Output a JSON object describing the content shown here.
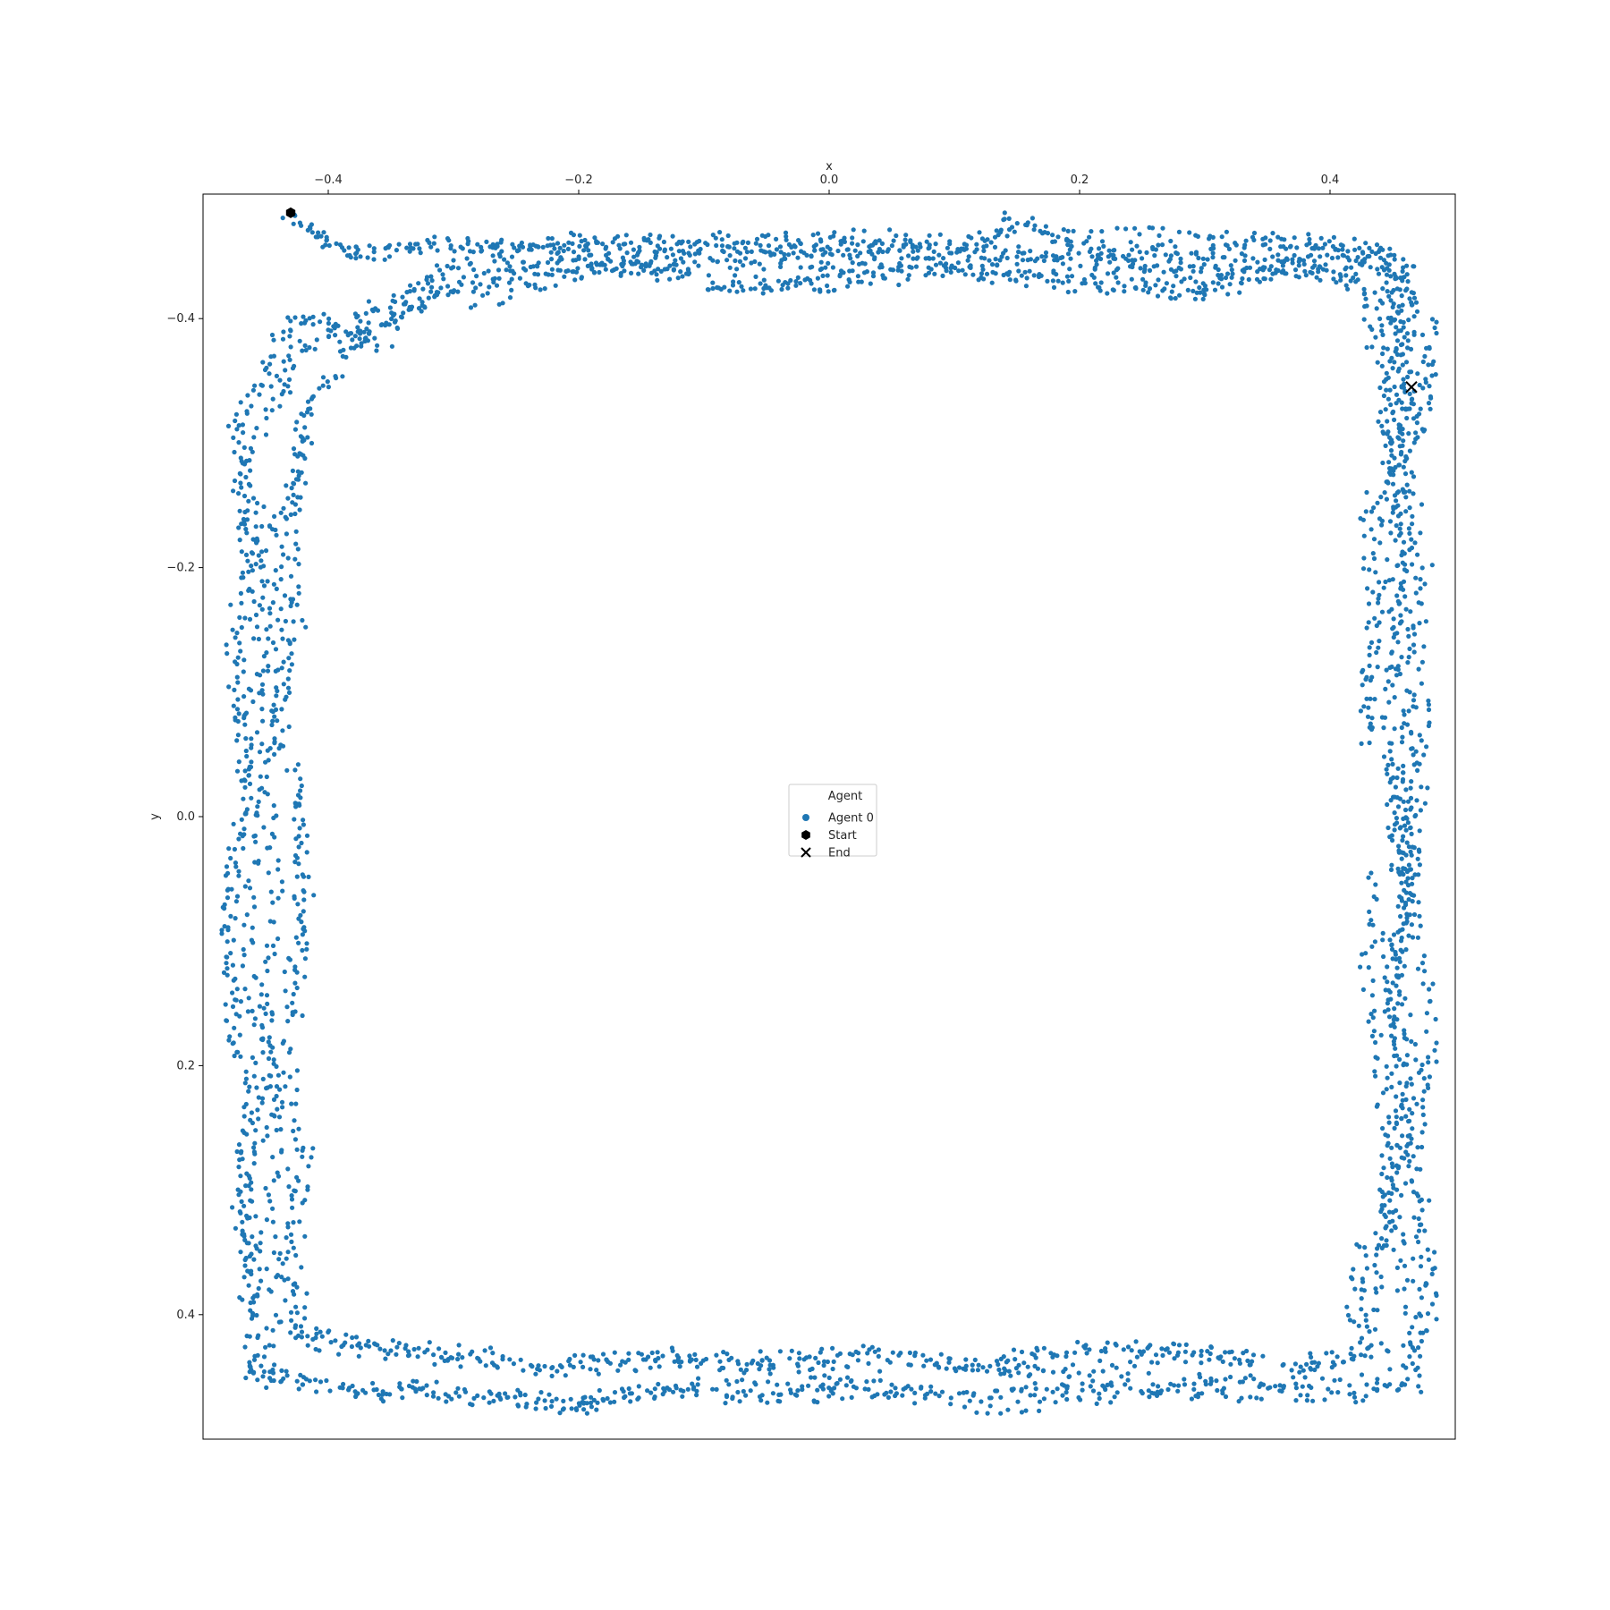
{
  "chart_data": {
    "type": "scatter",
    "xlabel": "x",
    "ylabel": "y",
    "xlim": [
      -0.5,
      0.5
    ],
    "ylim": [
      -0.5,
      0.5
    ],
    "y_inverted": true,
    "x_axis_position": "top",
    "x_ticks": [
      "-0.4",
      "-0.2",
      "0.0",
      "0.2",
      "0.4"
    ],
    "x_tick_values": [
      -0.4,
      -0.2,
      0.0,
      0.2,
      0.4
    ],
    "y_ticks": [
      "-0.4",
      "-0.2",
      "0.0",
      "0.2",
      "0.4"
    ],
    "y_tick_values": [
      -0.4,
      -0.2,
      0.0,
      0.2,
      0.4
    ],
    "grid": false,
    "legend": {
      "title": "Agent",
      "placement": "center",
      "entries": [
        {
          "label": "Agent 0",
          "marker": "circle",
          "color": "#1f77b4"
        },
        {
          "label": "Start",
          "marker": "hexagon",
          "color": "#000000"
        },
        {
          "label": "End",
          "marker": "x",
          "color": "#000000"
        }
      ]
    },
    "series": [
      {
        "name": "Agent 0",
        "color": "#1f77b4",
        "description_of_path": "dense trajectory hugging the walls of a square arena",
        "path": [
          [
            -0.43,
            -0.48
          ],
          [
            -0.38,
            -0.45
          ],
          [
            -0.3,
            -0.46
          ],
          [
            -0.2,
            -0.46
          ],
          [
            -0.1,
            -0.46
          ],
          [
            0.0,
            -0.46
          ],
          [
            0.1,
            -0.46
          ],
          [
            0.15,
            -0.48
          ],
          [
            0.2,
            -0.46
          ],
          [
            0.3,
            -0.46
          ],
          [
            0.4,
            -0.46
          ],
          [
            0.45,
            -0.45
          ],
          [
            0.47,
            -0.4
          ],
          [
            0.46,
            -0.3
          ],
          [
            0.47,
            -0.2
          ],
          [
            0.46,
            -0.1
          ],
          [
            0.46,
            0.0
          ],
          [
            0.46,
            0.1
          ],
          [
            0.47,
            0.2
          ],
          [
            0.46,
            0.3
          ],
          [
            0.47,
            0.4
          ],
          [
            0.46,
            0.45
          ],
          [
            0.4,
            0.46
          ],
          [
            0.3,
            0.46
          ],
          [
            0.2,
            0.46
          ],
          [
            0.1,
            0.47
          ],
          [
            0.0,
            0.46
          ],
          [
            -0.1,
            0.46
          ],
          [
            -0.2,
            0.47
          ],
          [
            -0.3,
            0.46
          ],
          [
            -0.4,
            0.46
          ],
          [
            -0.46,
            0.45
          ],
          [
            -0.46,
            0.4
          ],
          [
            -0.47,
            0.3
          ],
          [
            -0.46,
            0.2
          ],
          [
            -0.47,
            0.1
          ],
          [
            -0.46,
            0.0
          ],
          [
            -0.47,
            -0.1
          ],
          [
            -0.46,
            -0.2
          ],
          [
            -0.47,
            -0.3
          ],
          [
            -0.42,
            -0.4
          ],
          [
            -0.36,
            -0.38
          ],
          [
            -0.3,
            -0.42
          ],
          [
            -0.2,
            -0.44
          ],
          [
            -0.1,
            -0.43
          ],
          [
            0.0,
            -0.43
          ],
          [
            0.1,
            -0.44
          ],
          [
            0.2,
            -0.43
          ],
          [
            0.3,
            -0.42
          ],
          [
            0.38,
            -0.44
          ],
          [
            0.44,
            -0.42
          ],
          [
            0.45,
            -0.35
          ],
          [
            0.44,
            -0.25
          ],
          [
            0.45,
            -0.15
          ],
          [
            0.44,
            -0.05
          ],
          [
            0.45,
            0.05
          ],
          [
            0.44,
            0.15
          ],
          [
            0.45,
            0.25
          ],
          [
            0.44,
            0.35
          ],
          [
            0.43,
            0.42
          ],
          [
            0.35,
            0.44
          ],
          [
            0.25,
            0.43
          ],
          [
            0.15,
            0.44
          ],
          [
            0.05,
            0.43
          ],
          [
            -0.05,
            0.44
          ],
          [
            -0.15,
            0.43
          ],
          [
            -0.25,
            0.44
          ],
          [
            -0.35,
            0.43
          ],
          [
            -0.42,
            0.42
          ],
          [
            -0.44,
            0.35
          ],
          [
            -0.43,
            0.25
          ],
          [
            -0.44,
            0.15
          ],
          [
            -0.43,
            0.05
          ],
          [
            -0.44,
            -0.05
          ],
          [
            -0.43,
            -0.15
          ],
          [
            -0.44,
            -0.25
          ],
          [
            -0.43,
            -0.33
          ],
          [
            -0.38,
            -0.4
          ],
          [
            -0.3,
            -0.44
          ],
          [
            -0.2,
            -0.45
          ],
          [
            -0.1,
            -0.45
          ],
          [
            0.0,
            -0.45
          ],
          [
            0.1,
            -0.45
          ],
          [
            0.2,
            -0.45
          ],
          [
            0.3,
            -0.44
          ],
          [
            0.4,
            -0.45
          ],
          [
            0.46,
            -0.44
          ],
          [
            0.46,
            -0.36
          ],
          [
            0.45,
            -0.3
          ]
        ]
      },
      {
        "name": "Start",
        "color": "#000000",
        "points": [
          [
            -0.43,
            -0.485
          ]
        ]
      },
      {
        "name": "End",
        "color": "#000000",
        "points": [
          [
            0.465,
            -0.345
          ]
        ]
      }
    ]
  }
}
